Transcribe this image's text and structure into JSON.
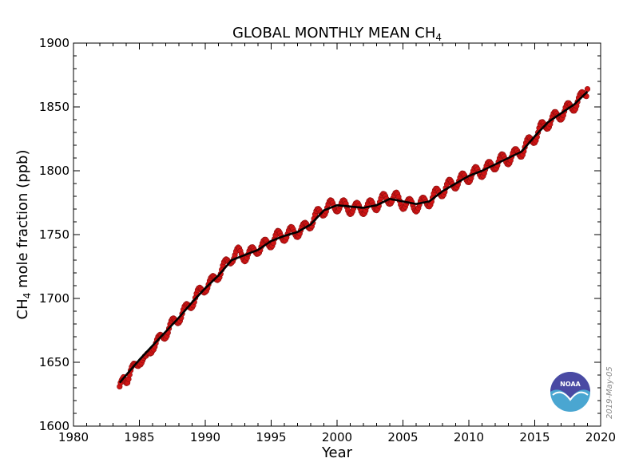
{
  "chart_data": {
    "type": "line",
    "title": "GLOBAL MONTHLY MEAN CH",
    "title_subscript": "4",
    "xlabel": "Year",
    "ylabel_prefix": "CH",
    "ylabel_subscript": "4",
    "ylabel_suffix": " mole fraction (ppb)",
    "xlim": [
      1980,
      2020
    ],
    "ylim": [
      1600,
      1900
    ],
    "x_ticks": [
      1980,
      1985,
      1990,
      1995,
      2000,
      2005,
      2010,
      2015,
      2020
    ],
    "y_ticks": [
      1600,
      1650,
      1700,
      1750,
      1800,
      1850,
      1900
    ],
    "grid": false,
    "series": [
      {
        "role": "monthly mean",
        "color": "#d01414",
        "edge_color": "#8a0e0e",
        "style": "points connected by thin line",
        "anchors": [
          [
            1983.5,
            1626
          ],
          [
            1983.8,
            1640
          ],
          [
            1984.1,
            1638
          ],
          [
            1984.5,
            1643
          ],
          [
            1985.0,
            1653
          ],
          [
            1985.5,
            1650
          ],
          [
            1986.0,
            1664
          ],
          [
            1986.5,
            1666
          ],
          [
            1987.0,
            1674
          ],
          [
            1987.5,
            1679
          ],
          [
            1988.0,
            1686
          ],
          [
            1988.5,
            1690
          ],
          [
            1989.0,
            1698
          ],
          [
            1989.5,
            1703
          ],
          [
            1990.0,
            1710
          ],
          [
            1990.5,
            1712
          ],
          [
            1991.0,
            1720
          ],
          [
            1991.5,
            1725
          ],
          [
            1992.0,
            1733
          ],
          [
            1992.5,
            1735
          ],
          [
            1993.0,
            1734
          ],
          [
            1993.5,
            1735
          ],
          [
            1994.0,
            1740
          ],
          [
            1994.5,
            1741
          ],
          [
            1995.0,
            1745
          ],
          [
            1995.5,
            1748
          ],
          [
            1996.0,
            1750
          ],
          [
            1996.5,
            1751
          ],
          [
            1997.0,
            1753
          ],
          [
            1997.5,
            1754
          ],
          [
            1998.0,
            1760
          ],
          [
            1998.5,
            1765
          ],
          [
            1999.0,
            1770
          ],
          [
            1999.5,
            1772
          ],
          [
            2000.0,
            1773
          ],
          [
            2000.5,
            1772
          ],
          [
            2001.0,
            1771
          ],
          [
            2001.5,
            1770
          ],
          [
            2002.0,
            1771
          ],
          [
            2002.5,
            1772
          ],
          [
            2003.0,
            1774
          ],
          [
            2003.5,
            1777
          ],
          [
            2004.0,
            1779
          ],
          [
            2004.5,
            1778
          ],
          [
            2005.0,
            1775
          ],
          [
            2005.5,
            1773
          ],
          [
            2006.0,
            1773
          ],
          [
            2006.5,
            1774
          ],
          [
            2007.0,
            1777
          ],
          [
            2007.5,
            1781
          ],
          [
            2008.0,
            1785
          ],
          [
            2008.5,
            1788
          ],
          [
            2009.0,
            1791
          ],
          [
            2009.5,
            1793
          ],
          [
            2010.0,
            1796
          ],
          [
            2010.5,
            1798
          ],
          [
            2011.0,
            1800
          ],
          [
            2011.5,
            1802
          ],
          [
            2012.0,
            1806
          ],
          [
            2012.5,
            1808
          ],
          [
            2013.0,
            1810
          ],
          [
            2013.5,
            1812
          ],
          [
            2014.0,
            1816
          ],
          [
            2014.5,
            1821
          ],
          [
            2015.0,
            1827
          ],
          [
            2015.5,
            1833
          ],
          [
            2016.0,
            1838
          ],
          [
            2016.5,
            1841
          ],
          [
            2017.0,
            1845
          ],
          [
            2017.5,
            1848
          ],
          [
            2018.0,
            1852
          ],
          [
            2018.5,
            1856
          ],
          [
            2019.0,
            1864
          ]
        ]
      },
      {
        "role": "deseasonalized trend",
        "color": "#000000",
        "points": [
          [
            1983.5,
            1634
          ],
          [
            1984.0,
            1640
          ],
          [
            1985.0,
            1652
          ],
          [
            1986.0,
            1663
          ],
          [
            1987.0,
            1674
          ],
          [
            1988.0,
            1685
          ],
          [
            1989.0,
            1697
          ],
          [
            1990.0,
            1708
          ],
          [
            1991.0,
            1718
          ],
          [
            1992.0,
            1730
          ],
          [
            1993.0,
            1734
          ],
          [
            1994.0,
            1738
          ],
          [
            1995.0,
            1745
          ],
          [
            1996.0,
            1749
          ],
          [
            1997.0,
            1752
          ],
          [
            1998.0,
            1758
          ],
          [
            1999.0,
            1769
          ],
          [
            2000.0,
            1773
          ],
          [
            2001.0,
            1772
          ],
          [
            2002.0,
            1771
          ],
          [
            2003.0,
            1773
          ],
          [
            2004.0,
            1778
          ],
          [
            2005.0,
            1776
          ],
          [
            2006.0,
            1774
          ],
          [
            2007.0,
            1776
          ],
          [
            2008.0,
            1784
          ],
          [
            2009.0,
            1790
          ],
          [
            2010.0,
            1796
          ],
          [
            2011.0,
            1800
          ],
          [
            2012.0,
            1805
          ],
          [
            2013.0,
            1810
          ],
          [
            2014.0,
            1815
          ],
          [
            2015.0,
            1827
          ],
          [
            2016.0,
            1838
          ],
          [
            2017.0,
            1845
          ],
          [
            2018.0,
            1852
          ],
          [
            2019.0,
            1862
          ]
        ]
      }
    ],
    "annotations": [
      "2019-May-05"
    ]
  },
  "logo": {
    "text": "NOAA",
    "top_color": "#4a4aa3",
    "bottom_color": "#4aa6d1"
  }
}
